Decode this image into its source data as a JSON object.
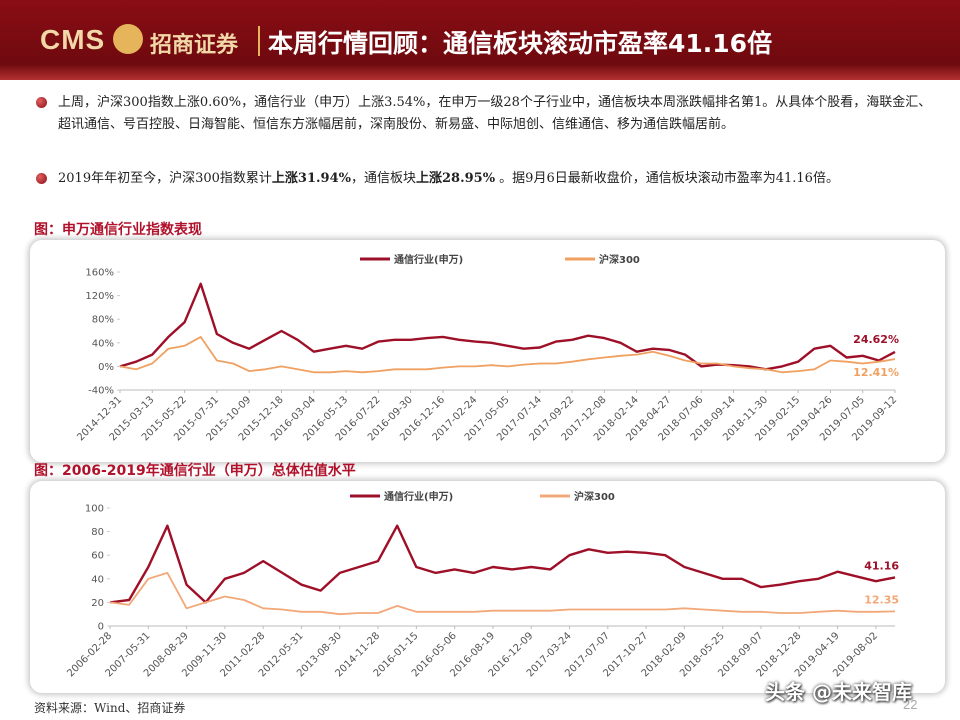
{
  "header": {
    "logo_en": "CMS",
    "logo_cn": "招商证券",
    "title": "本周行情回顾：通信板块滚动市盈率41.16倍"
  },
  "bullets": [
    [
      "上周，沪深300指数上涨0.60%，通信行业（申万）上涨3.54%，在申万一级28个子行业中，通信板块本周涨跌幅排名第1。从具体个股看，海联金汇、超讯通信、号百控股、日海智能、恒信东方涨幅居前，深南股份、新易盛、中际旭创、信维通信、移为通信跌幅居前。"
    ],
    [
      "2019年年初至今，沪深300指数累计",
      "上涨31.94%",
      "，通信板块",
      "上涨28.95%",
      " 。据9月6日最新收盘价，通信板块滚动市盈率为41.16倍。"
    ]
  ],
  "chart_data": [
    {
      "type": "line",
      "title": "图：申万通信行业指数表现",
      "categories": [
        "2014-12-31",
        null,
        "2015-03-13",
        null,
        "2015-05-22",
        null,
        "2015-07-31",
        null,
        "2015-10-09",
        null,
        "2015-12-18",
        null,
        "2016-03-04",
        null,
        "2016-05-13",
        null,
        "2016-07-22",
        null,
        "2016-09-30",
        null,
        "2016-12-16",
        null,
        "2017-02-24",
        null,
        "2017-05-05",
        null,
        "2017-07-14",
        null,
        "2017-09-22",
        null,
        "2017-12-08",
        null,
        "2018-02-14",
        null,
        "2018-04-27",
        null,
        "2018-07-06",
        null,
        "2018-09-14",
        null,
        "2018-11-30",
        null,
        "2019-02-15",
        null,
        "2019-04-26",
        null,
        "2019-07-05",
        null,
        "2019-09-12"
      ],
      "series": [
        {
          "name": "通信行业(申万)",
          "color": "#9e0f28",
          "values": [
            0,
            8,
            20,
            50,
            75,
            140,
            55,
            40,
            30,
            45,
            60,
            45,
            25,
            30,
            35,
            30,
            42,
            45,
            45,
            48,
            50,
            45,
            42,
            40,
            35,
            30,
            32,
            42,
            45,
            52,
            48,
            40,
            25,
            30,
            28,
            20,
            0,
            3,
            2,
            0,
            -5,
            0,
            8,
            30,
            35,
            15,
            18,
            10,
            24.62
          ],
          "value_labels": [
            null,
            null,
            null,
            null,
            null,
            null,
            null,
            null,
            null,
            null,
            null,
            null,
            null,
            null,
            null,
            null,
            null,
            null,
            null,
            null,
            null,
            null,
            null,
            null,
            null,
            null,
            null,
            null,
            null,
            null,
            null,
            null,
            null,
            null,
            null,
            null,
            null,
            null,
            null,
            null,
            null,
            null,
            null,
            null,
            null,
            null,
            null,
            null,
            "24.62%"
          ]
        },
        {
          "name": "沪深300",
          "color": "#f0a060",
          "values": [
            0,
            -5,
            5,
            30,
            35,
            50,
            10,
            5,
            -8,
            -5,
            0,
            -5,
            -10,
            -10,
            -8,
            -10,
            -8,
            -5,
            -5,
            -5,
            -2,
            0,
            0,
            2,
            0,
            3,
            5,
            5,
            8,
            12,
            15,
            18,
            20,
            25,
            18,
            10,
            5,
            5,
            0,
            -3,
            -5,
            -10,
            -8,
            -5,
            10,
            8,
            5,
            8,
            12.41
          ],
          "value_labels": [
            null,
            null,
            null,
            null,
            null,
            null,
            null,
            null,
            null,
            null,
            null,
            null,
            null,
            null,
            null,
            null,
            null,
            null,
            null,
            null,
            null,
            null,
            null,
            null,
            null,
            null,
            null,
            null,
            null,
            null,
            null,
            null,
            null,
            null,
            null,
            null,
            null,
            null,
            null,
            null,
            null,
            null,
            null,
            null,
            null,
            null,
            null,
            null,
            "12.41%"
          ]
        }
      ],
      "ylim": [
        -40,
        160
      ],
      "yticks": [
        {
          "value": -40,
          "label": "-40%"
        },
        {
          "value": 0,
          "label": "0%"
        },
        {
          "value": 40,
          "label": "40%"
        },
        {
          "value": 80,
          "label": "80%"
        },
        {
          "value": 120,
          "label": "120%"
        },
        {
          "value": 160,
          "label": "160%"
        }
      ],
      "grid": false,
      "legend": "top"
    },
    {
      "type": "line",
      "title": "图：2006-2019年通信行业（申万）总体估值水平",
      "categories": [
        "2006-02-28",
        null,
        "2007-05-31",
        null,
        "2008-08-29",
        null,
        "2009-11-30",
        null,
        "2011-02-28",
        null,
        "2012-05-31",
        null,
        "2013-08-30",
        null,
        "2014-11-28",
        null,
        "2016-01-15",
        null,
        "2016-05-06",
        null,
        "2016-08-19",
        null,
        "2016-12-09",
        null,
        "2017-03-24",
        null,
        "2017-07-07",
        null,
        "2017-10-27",
        null,
        "2018-02-09",
        null,
        "2018-05-25",
        null,
        "2018-09-07",
        null,
        "2018-12-28",
        null,
        "2019-04-19",
        null,
        "2019-08-02",
        null
      ],
      "series": [
        {
          "name": "通信行业(申万)",
          "color": "#9e0f28",
          "end_label": true,
          "values": [
            20,
            22,
            50,
            85,
            35,
            20,
            40,
            45,
            55,
            45,
            35,
            30,
            45,
            50,
            55,
            85,
            50,
            45,
            48,
            45,
            50,
            48,
            50,
            48,
            60,
            65,
            62,
            63,
            62,
            60,
            50,
            45,
            40,
            40,
            33,
            35,
            38,
            40,
            46,
            42,
            38,
            41.16
          ]
        },
        {
          "name": "沪深300",
          "color": "#f2a878",
          "end_label": true,
          "values": [
            20,
            18,
            40,
            45,
            15,
            20,
            25,
            22,
            15,
            14,
            12,
            12,
            10,
            11,
            11,
            17,
            12,
            12,
            12,
            12,
            13,
            13,
            13,
            13,
            14,
            14,
            14,
            14,
            14,
            14,
            15,
            14,
            13,
            12,
            12,
            11,
            11,
            12,
            13,
            12,
            12,
            12.35
          ]
        }
      ],
      "ylim": [
        0,
        100
      ],
      "yticks": [
        0,
        20,
        40,
        60,
        80,
        100
      ],
      "grid": false,
      "legend": "top"
    }
  ],
  "source": "资料来源：Wind、招商证券",
  "page_number": "22",
  "watermark": "头条 @未来智库"
}
